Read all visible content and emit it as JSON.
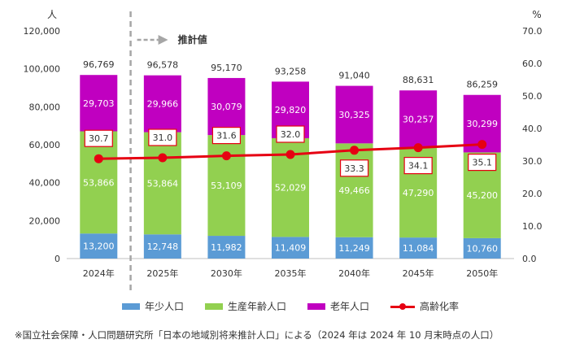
{
  "chart_data": {
    "type": "bar",
    "stacked": true,
    "categories": [
      "2024年",
      "2025年",
      "2030年",
      "2035年",
      "2040年",
      "2045年",
      "2050年"
    ],
    "series": [
      {
        "name": "年少人口",
        "color": "#5b9bd5",
        "values": [
          13200,
          12748,
          11982,
          11409,
          11249,
          11084,
          10760
        ],
        "labels": [
          "13,200",
          "12,748",
          "11,982",
          "11,409",
          "11,249",
          "11,084",
          "10,760"
        ]
      },
      {
        "name": "生産年齢人口",
        "color": "#92d050",
        "values": [
          53866,
          53864,
          53109,
          52029,
          49466,
          47290,
          45200
        ],
        "labels": [
          "53,866",
          "53,864",
          "53,109",
          "52,029",
          "49,466",
          "47,290",
          "45,200"
        ]
      },
      {
        "name": "老年人口",
        "color": "#c000c0",
        "values": [
          29703,
          29966,
          30079,
          29820,
          30325,
          30257,
          30299
        ],
        "labels": [
          "29,703",
          "29,966",
          "30,079",
          "29,820",
          "30,325",
          "30,257",
          "30,299"
        ]
      }
    ],
    "totals": [
      96769,
      96578,
      95170,
      93258,
      91040,
      88631,
      86259
    ],
    "total_labels": [
      "96,769",
      "96,578",
      "95,170",
      "93,258",
      "91,040",
      "88,631",
      "86,259"
    ],
    "line": {
      "name": "高齢化率",
      "color": "#e60012",
      "values": [
        30.7,
        31.0,
        31.6,
        32.0,
        33.3,
        34.1,
        35.1
      ],
      "labels": [
        "30.7",
        "31.0",
        "31.6",
        "32.0",
        "33.3",
        "34.1",
        "35.1"
      ]
    },
    "ylabel": "人",
    "y2label": "%",
    "ylim": [
      0,
      120000
    ],
    "y2lim": [
      0,
      70
    ],
    "yticks": [
      "0",
      "20,000",
      "40,000",
      "60,000",
      "80,000",
      "100,000",
      "120,000"
    ],
    "y2ticks": [
      "0.0",
      "10.0",
      "20.0",
      "30.0",
      "40.0",
      "50.0",
      "60.0",
      "70.0"
    ],
    "annotation": "推計値",
    "legend_position": "bottom"
  },
  "footnote": "※国立社会保障・人口問題研究所「日本の地域別将来推計人口」による（2024 年は 2024 年 10 月末時点の人口）"
}
